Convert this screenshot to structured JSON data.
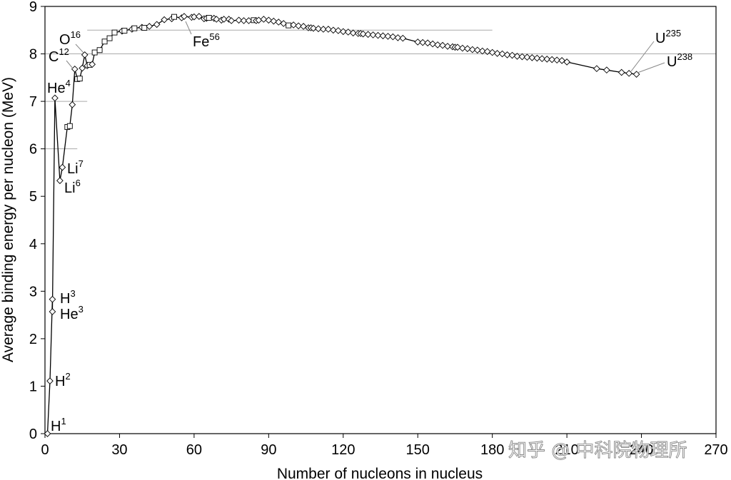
{
  "chart_data": {
    "type": "line",
    "xlabel": "Number of nucleons in nucleus",
    "ylabel": "Average binding energy per nucleon (MeV)",
    "xlim": [
      0,
      270
    ],
    "ylim": [
      0,
      9
    ],
    "x_ticks": [
      "0",
      "30",
      "60",
      "90",
      "120",
      "150",
      "180",
      "210",
      "240",
      "270"
    ],
    "y_ticks": [
      "0",
      "1",
      "2",
      "3",
      "4",
      "5",
      "6",
      "7",
      "8",
      "9"
    ],
    "grid": false,
    "reference_lines": [
      {
        "y": 8.0,
        "x_start": 0,
        "x_end": 270
      },
      {
        "y": 8.5,
        "x_start": 17,
        "x_end": 180
      },
      {
        "y": 7.0,
        "x_start": 0,
        "x_end": 17
      },
      {
        "y": 6.0,
        "x_start": 0,
        "x_end": 13
      }
    ],
    "series": [
      {
        "marker": "diamond-and-square",
        "points": [
          [
            1,
            0.0
          ],
          [
            2,
            1.11
          ],
          [
            3,
            2.83
          ],
          [
            3,
            2.57
          ],
          [
            4,
            7.07
          ],
          [
            6,
            5.33
          ],
          [
            7,
            5.61
          ],
          [
            9,
            6.46
          ],
          [
            10,
            6.48
          ],
          [
            11,
            6.93
          ],
          [
            12,
            7.68
          ],
          [
            13,
            7.47
          ],
          [
            14,
            7.48
          ],
          [
            15,
            7.7
          ],
          [
            16,
            7.98
          ],
          [
            17,
            7.75
          ],
          [
            18,
            7.77
          ],
          [
            19,
            7.78
          ],
          [
            20,
            8.03
          ],
          [
            22,
            8.08
          ],
          [
            24,
            8.26
          ],
          [
            26,
            8.33
          ],
          [
            28,
            8.45
          ],
          [
            31,
            8.48
          ],
          [
            32,
            8.49
          ],
          [
            35,
            8.52
          ],
          [
            36,
            8.54
          ],
          [
            39,
            8.56
          ],
          [
            40,
            8.55
          ],
          [
            42,
            8.58
          ],
          [
            45,
            8.62
          ],
          [
            48,
            8.72
          ],
          [
            51,
            8.74
          ],
          [
            52,
            8.78
          ],
          [
            55,
            8.76
          ],
          [
            56,
            8.79
          ],
          [
            59,
            8.77
          ],
          [
            60,
            8.78
          ],
          [
            62,
            8.79
          ],
          [
            64,
            8.74
          ],
          [
            65,
            8.75
          ],
          [
            66,
            8.76
          ],
          [
            68,
            8.75
          ],
          [
            69,
            8.73
          ],
          [
            71,
            8.71
          ],
          [
            72,
            8.73
          ],
          [
            74,
            8.73
          ],
          [
            75,
            8.7
          ],
          [
            78,
            8.71
          ],
          [
            80,
            8.7
          ],
          [
            82,
            8.7
          ],
          [
            84,
            8.71
          ],
          [
            85,
            8.7
          ],
          [
            86,
            8.71
          ],
          [
            88,
            8.73
          ],
          [
            90,
            8.71
          ],
          [
            92,
            8.69
          ],
          [
            94,
            8.67
          ],
          [
            96,
            8.64
          ],
          [
            98,
            8.6
          ],
          [
            100,
            8.61
          ],
          [
            102,
            8.59
          ],
          [
            104,
            8.58
          ],
          [
            106,
            8.55
          ],
          [
            107,
            8.55
          ],
          [
            108,
            8.54
          ],
          [
            110,
            8.53
          ],
          [
            112,
            8.52
          ],
          [
            114,
            8.52
          ],
          [
            116,
            8.5
          ],
          [
            118,
            8.49
          ],
          [
            120,
            8.47
          ],
          [
            122,
            8.46
          ],
          [
            124,
            8.44
          ],
          [
            126,
            8.43
          ],
          [
            127,
            8.43
          ],
          [
            128,
            8.42
          ],
          [
            130,
            8.41
          ],
          [
            132,
            8.4
          ],
          [
            134,
            8.39
          ],
          [
            136,
            8.38
          ],
          [
            138,
            8.37
          ],
          [
            140,
            8.36
          ],
          [
            142,
            8.34
          ],
          [
            144,
            8.33
          ],
          [
            150,
            8.25
          ],
          [
            152,
            8.24
          ],
          [
            154,
            8.23
          ],
          [
            156,
            8.21
          ],
          [
            158,
            8.19
          ],
          [
            160,
            8.18
          ],
          [
            162,
            8.16
          ],
          [
            164,
            8.15
          ],
          [
            165,
            8.14
          ],
          [
            166,
            8.14
          ],
          [
            168,
            8.12
          ],
          [
            170,
            8.11
          ],
          [
            172,
            8.09
          ],
          [
            174,
            8.08
          ],
          [
            176,
            8.06
          ],
          [
            178,
            8.05
          ],
          [
            180,
            8.03
          ],
          [
            182,
            8.01
          ],
          [
            184,
            8.0
          ],
          [
            186,
            7.98
          ],
          [
            188,
            7.97
          ],
          [
            190,
            7.95
          ],
          [
            192,
            7.94
          ],
          [
            194,
            7.93
          ],
          [
            196,
            7.92
          ],
          [
            198,
            7.91
          ],
          [
            200,
            7.9
          ],
          [
            202,
            7.89
          ],
          [
            204,
            7.88
          ],
          [
            206,
            7.87
          ],
          [
            208,
            7.86
          ],
          [
            210,
            7.83
          ],
          [
            222,
            7.69
          ],
          [
            226,
            7.66
          ],
          [
            232,
            7.61
          ],
          [
            235,
            7.59
          ],
          [
            238,
            7.57
          ]
        ]
      }
    ],
    "labels": [
      {
        "base": "H",
        "sup": "1"
      },
      {
        "base": "H",
        "sup": "2"
      },
      {
        "base": "H",
        "sup": "3"
      },
      {
        "base": "He",
        "sup": "3"
      },
      {
        "base": "He",
        "sup": "4"
      },
      {
        "base": "Li",
        "sup": "7"
      },
      {
        "base": "Li",
        "sup": "6"
      },
      {
        "base": "C",
        "sup": "12"
      },
      {
        "base": "O",
        "sup": "16"
      },
      {
        "base": "Fe",
        "sup": "56"
      },
      {
        "base": "U",
        "sup": "235"
      },
      {
        "base": "U",
        "sup": "238"
      }
    ],
    "colors": {
      "line": "#000000",
      "marker_fill": "#ffffff",
      "reference": "#aaaaaa",
      "axis": "#000000"
    }
  },
  "watermark": {
    "text": "知乎 @ 中科院物理所"
  }
}
